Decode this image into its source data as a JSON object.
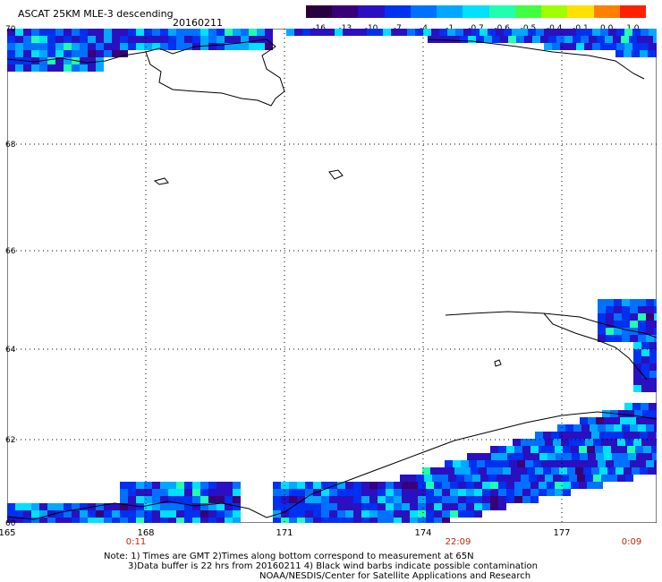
{
  "header": {
    "title": "ASCAT 25KM MLE-3 descending",
    "date": "20160211"
  },
  "colorbar": {
    "labels": [
      "-16",
      "-13",
      "-10",
      "-7",
      "-4",
      "-1",
      "-0.7",
      "-0.6",
      "-0.5",
      "-0.4",
      "-0.1",
      "0.0",
      "1.0"
    ],
    "colors": [
      "#2a0040",
      "#3a0078",
      "#2a10c0",
      "#0030f0",
      "#0070ff",
      "#00a8ff",
      "#00e0ff",
      "#20ffb0",
      "#40ff40",
      "#a0ff00",
      "#ffe000",
      "#ff8000",
      "#ff2000"
    ]
  },
  "axes": {
    "lat_labels": [
      "70",
      "68",
      "66",
      "64",
      "62",
      "60"
    ],
    "lon_labels": [
      "165",
      "168",
      "171",
      "174",
      "177"
    ]
  },
  "times": [
    "0:11",
    "22:09",
    "0:09"
  ],
  "notes": {
    "line1": "Note: 1) Times are GMT 2)Times along bottom correspond to measurement at 65N",
    "line2": "3)Data buffer is 22 hrs from 20160211 4) Black wind barbs indicate possible contamination",
    "line3": "NOAA/NESDIS/Center for Satellite Applications and Research"
  },
  "map": {
    "lat_range": [
      60,
      70
    ],
    "lon_range": [
      165,
      178.5
    ],
    "background": "#ffffff",
    "gridline_color": "#000000",
    "coastline_color": "#000000"
  }
}
